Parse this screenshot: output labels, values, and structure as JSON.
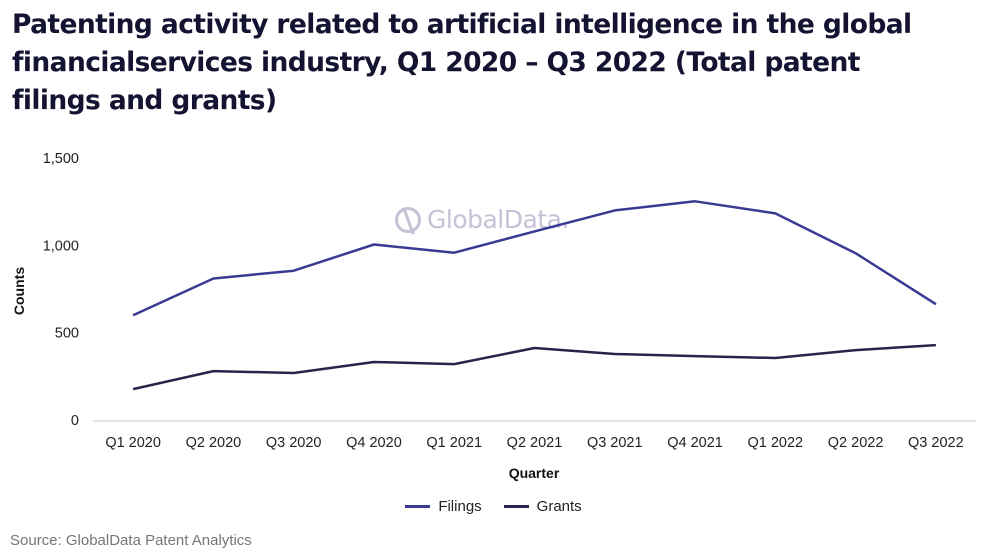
{
  "chart_data": {
    "type": "line",
    "title": "Patenting activity related to artificial intelligence in the global financialservices industry, Q1 2020 – Q3 2022 (Total patent filings and grants)",
    "xlabel": "Quarter",
    "ylabel": "Counts",
    "ylim": [
      0,
      1500
    ],
    "yticks": [
      0,
      500,
      1000,
      1500
    ],
    "ytick_labels": [
      "0",
      "500",
      "1,000",
      "1,500"
    ],
    "grid": false,
    "legend_position": "bottom-center",
    "categories": [
      "Q1 2020",
      "Q2 2020",
      "Q3 2020",
      "Q4 2020",
      "Q1 2021",
      "Q2 2021",
      "Q3 2021",
      "Q4 2021",
      "Q1 2022",
      "Q2 2022",
      "Q3 2022"
    ],
    "series": [
      {
        "name": "Filings",
        "color": "#3a3a94",
        "values": [
          600,
          810,
          855,
          1005,
          958,
          1080,
          1200,
          1252,
          1183,
          955,
          663
        ]
      },
      {
        "name": "Grants",
        "color": "#26264a",
        "values": [
          177,
          280,
          269,
          332,
          320,
          412,
          378,
          366,
          355,
          400,
          429
        ]
      }
    ]
  },
  "watermark": {
    "text": "GlobalData."
  },
  "source": "Source: GlobalData Patent Analytics"
}
